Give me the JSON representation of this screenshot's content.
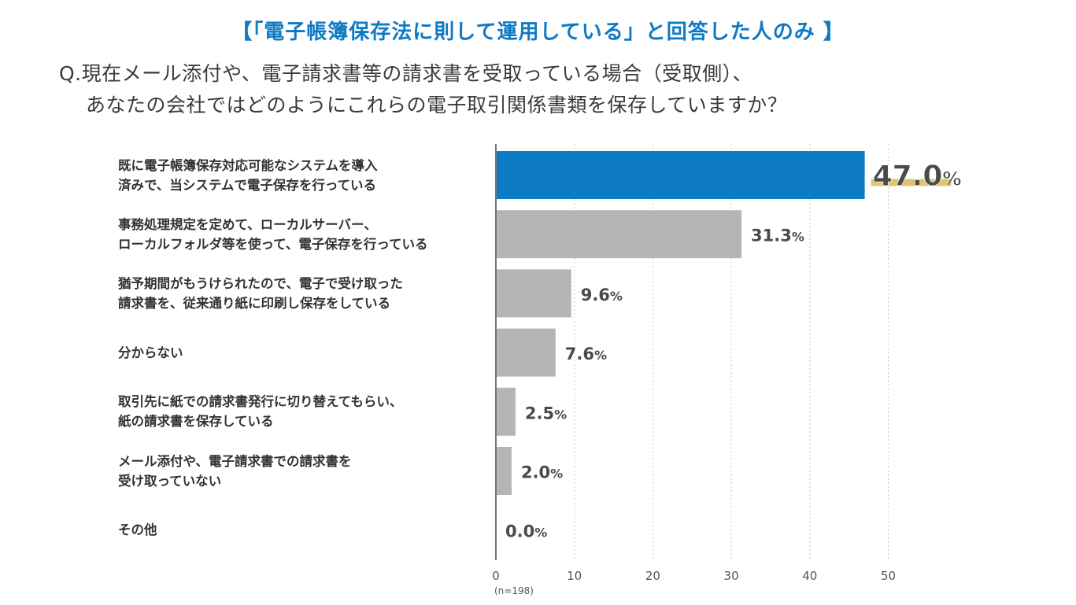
{
  "header_note": "【「電子帳簿保存法に則して運用している」と回答した人のみ 】",
  "question_line1": "Q.現在メール添付や、電子請求書等の請求書を受取っている場合（受取側）、",
  "question_line2": "あなたの会社ではどのようにこれらの電子取引関係書類を保存していますか？",
  "sample_size": "(n=198)",
  "colors": {
    "highlight": "#0d7ac4",
    "bar": "#b5b5b5",
    "underline": "#e2c46e",
    "axis": "#777777"
  },
  "chart_data": {
    "type": "bar",
    "orientation": "horizontal",
    "categories": [
      "既に電子帳簿保存対応可能なシステムを導入\n済みで、当システムで電子保存を行っている",
      "事務処理規定を定めて、ローカルサーバー、\nローカルフォルダ等を使って、電子保存を行っている",
      "猶予期間がもうけられたので、電子で受け取った\n請求書を、従来通り紙に印刷し保存をしている",
      "分からない",
      "取引先に紙での請求書発行に切り替えてもらい、\n紙の請求書を保存している",
      "メール添付や、電子請求書での請求書を\n受け取っていない",
      "その他"
    ],
    "values": [
      47.0,
      31.3,
      9.6,
      7.6,
      2.5,
      2.0,
      0.0
    ],
    "value_labels": [
      "47.0",
      "31.3",
      "9.6",
      "7.6",
      "2.5",
      "2.0",
      "0.0"
    ],
    "unit": "%",
    "highlight_index": 0,
    "xlim": [
      0,
      50
    ],
    "xticks": [
      "0",
      "10",
      "20",
      "30",
      "40",
      "50"
    ],
    "grid": true
  }
}
